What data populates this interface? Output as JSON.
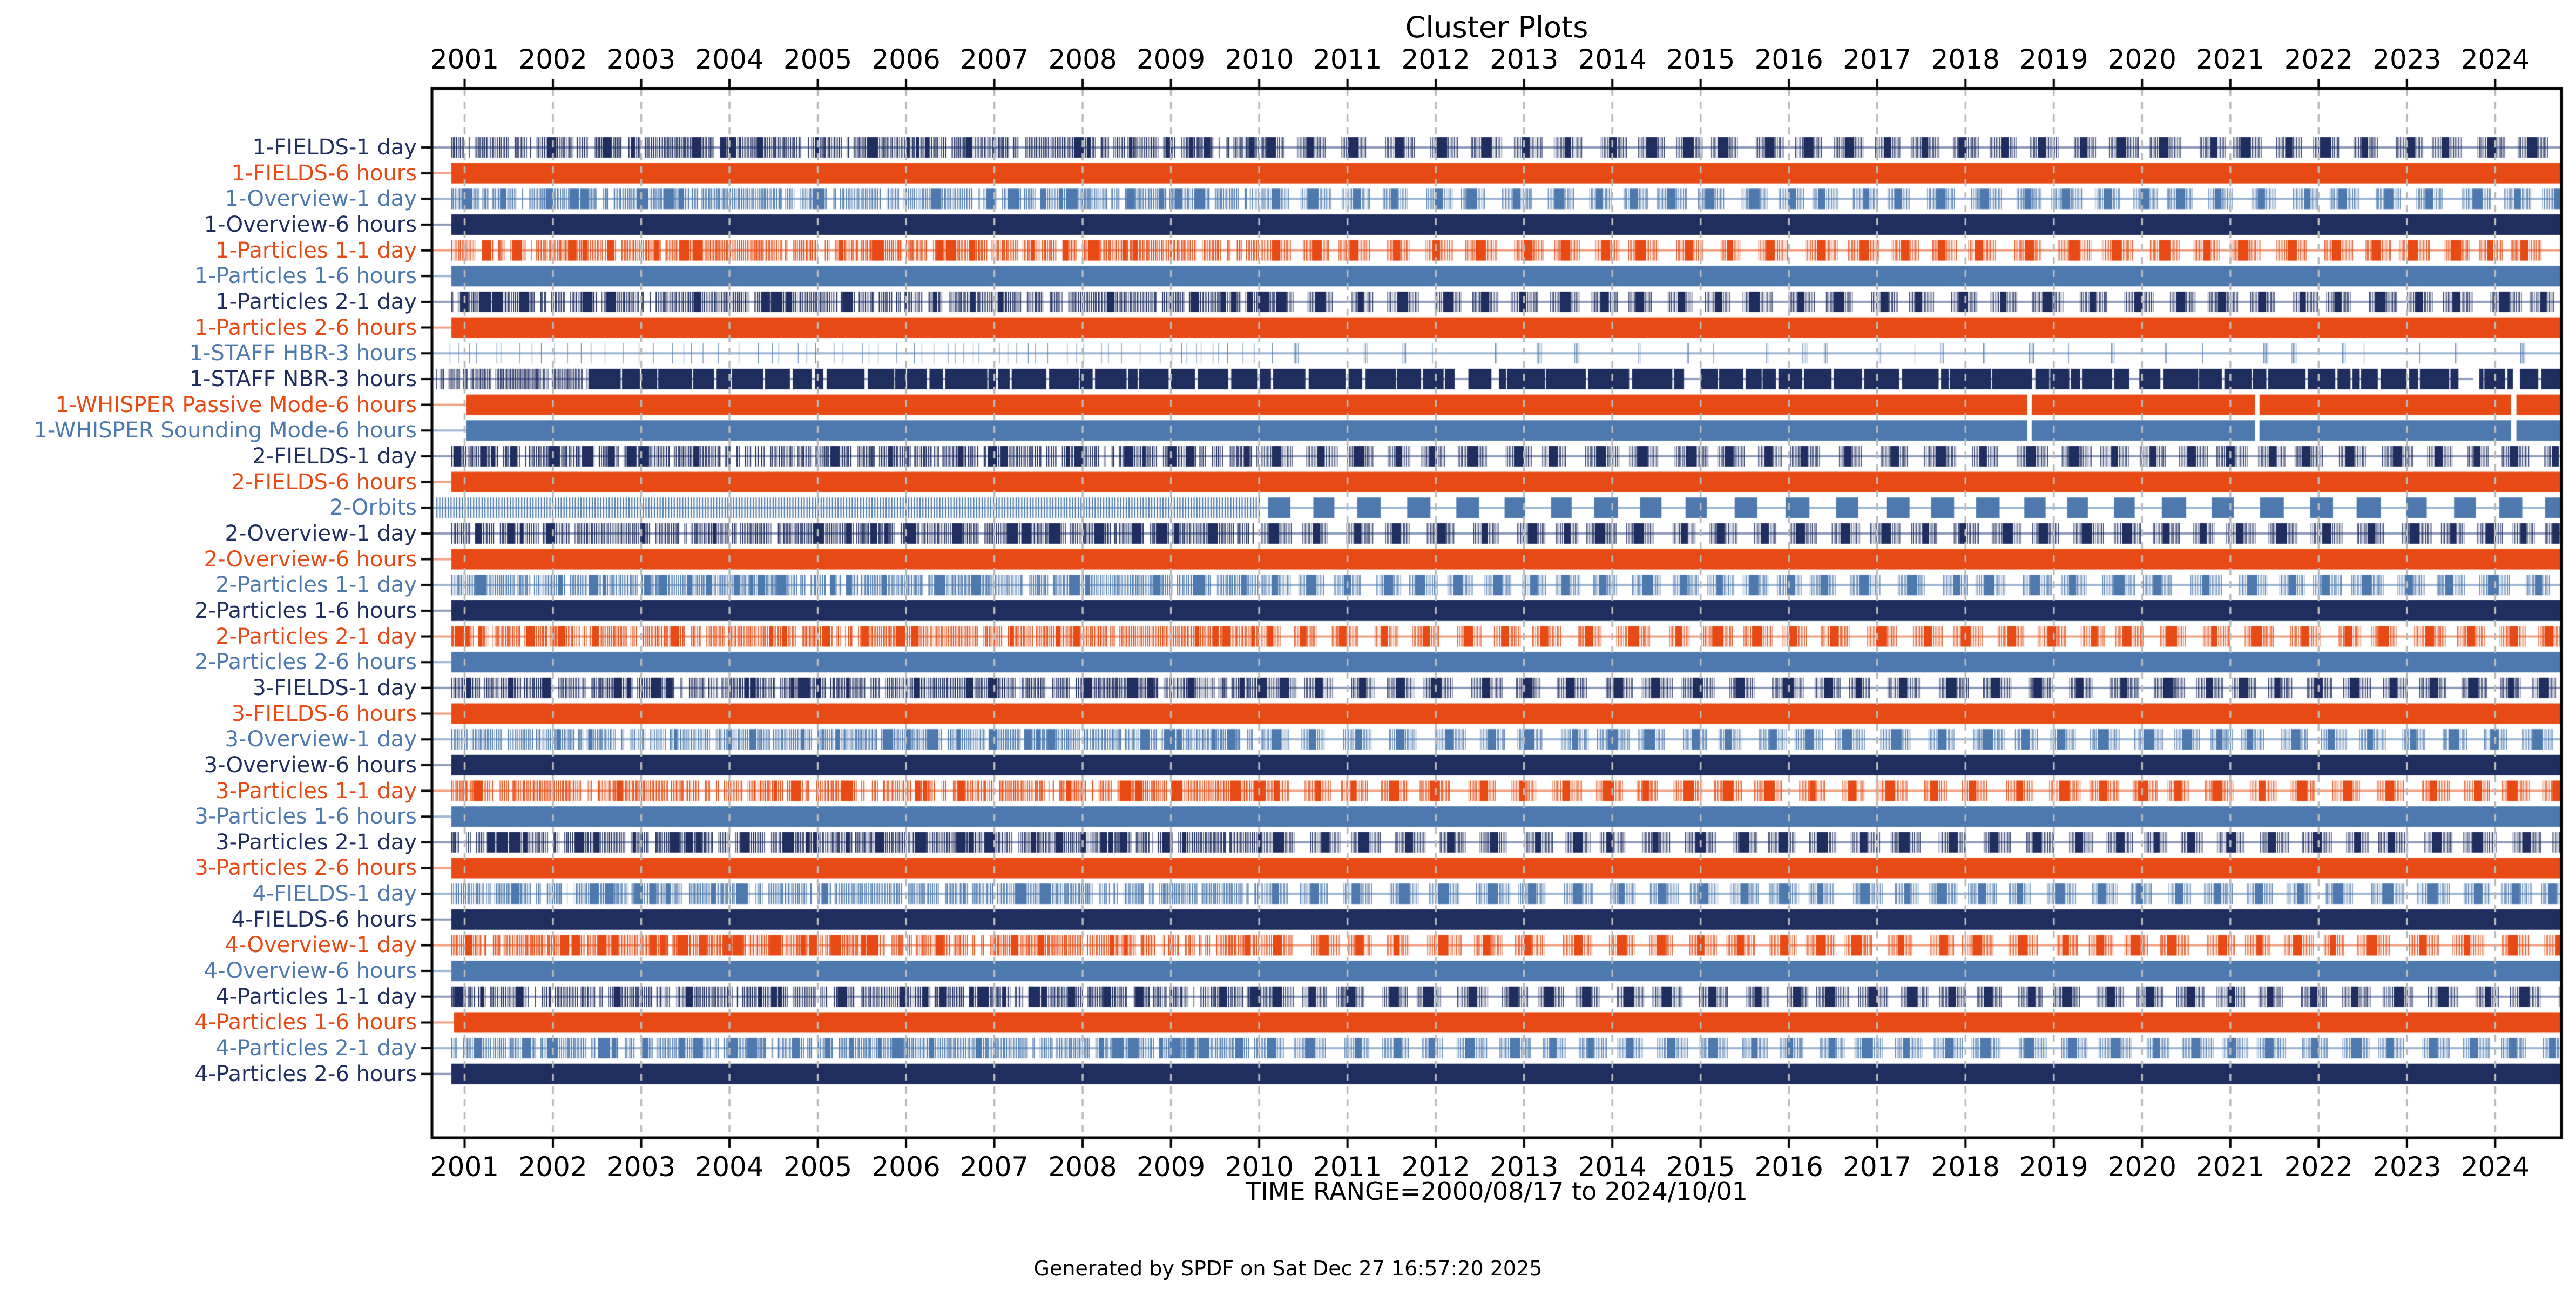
{
  "title": "Cluster Plots",
  "footer": "Generated by SPDF on Sat Dec 27 16:57:20 2025",
  "colors": {
    "navy": "#1f2e5f",
    "orange": "#e74a14",
    "blue": "#4d79ae",
    "navy_light": "#8e9bbd",
    "orange_light": "#f2a183",
    "blue_light": "#9cb6d6",
    "grid": "#b9b9b9",
    "axis": "#000000",
    "background": "#ffffff",
    "text": "#000000"
  },
  "chart_data": {
    "type": "bar",
    "subtype": "availability-timeline",
    "title": "Cluster Plots",
    "xlabel": "TIME RANGE=2000/08/17 to 2024/10/01",
    "ylabel": "",
    "xlim": [
      2000.63,
      2024.75
    ],
    "x_ticks": [
      2001,
      2002,
      2003,
      2004,
      2005,
      2006,
      2007,
      2008,
      2009,
      2010,
      2011,
      2012,
      2013,
      2014,
      2015,
      2016,
      2017,
      2018,
      2019,
      2020,
      2021,
      2022,
      2023,
      2024
    ],
    "grid": "vertical-dashed",
    "legend": "none",
    "time_range": {
      "start": "2000/08/17",
      "end": "2024/10/01"
    },
    "pattern_notes": {
      "dense-intervals": "1-day resolution product: dense barcode of short intervals until 2010, then ~2 clusters per year each with a solid core and fringe ticks",
      "solid": "continuous availability bar",
      "sparse-ticks": "isolated short intervals",
      "dense-then-blocks": "dense barcode until ~2002.4 then nearly continuous blocks with thin gaps",
      "regular-then-blocks": "regular fine ticks until 2010 then ~0.25-year blocks about twice per year"
    },
    "rows": [
      {
        "label": "1-FIELDS-1 day",
        "color": "navy",
        "pattern": "dense-intervals",
        "start": 2000.85,
        "end": 2024.75
      },
      {
        "label": "1-FIELDS-6 hours",
        "color": "orange",
        "pattern": "solid",
        "start": 2000.85,
        "end": 2024.75
      },
      {
        "label": "1-Overview-1 day",
        "color": "blue",
        "pattern": "dense-intervals",
        "start": 2000.85,
        "end": 2024.75
      },
      {
        "label": "1-Overview-6 hours",
        "color": "navy",
        "pattern": "solid",
        "start": 2000.85,
        "end": 2024.75
      },
      {
        "label": "1-Particles 1-1 day",
        "color": "orange",
        "pattern": "dense-intervals",
        "start": 2000.85,
        "end": 2024.75
      },
      {
        "label": "1-Particles 1-6 hours",
        "color": "blue",
        "pattern": "solid",
        "start": 2000.85,
        "end": 2024.75
      },
      {
        "label": "1-Particles 2-1 day",
        "color": "navy",
        "pattern": "dense-intervals",
        "start": 2000.85,
        "end": 2024.75
      },
      {
        "label": "1-Particles 2-6 hours",
        "color": "orange",
        "pattern": "solid",
        "start": 2000.85,
        "end": 2024.75
      },
      {
        "label": "1-STAFF HBR-3 hours",
        "color": "blue",
        "pattern": "sparse-ticks",
        "start": 2000.68,
        "end": 2024.75
      },
      {
        "label": "1-STAFF NBR-3 hours",
        "color": "navy",
        "pattern": "dense-then-blocks",
        "start": 2000.68,
        "end": 2024.75,
        "gaps": [
          [
            2023.75,
            2023.82
          ],
          [
            2024.2,
            2024.28
          ]
        ]
      },
      {
        "label": "1-WHISPER Passive Mode-6 hours",
        "color": "orange",
        "pattern": "solid",
        "start": 2001.02,
        "end": 2024.75,
        "gaps": [
          [
            2018.7,
            2018.75
          ],
          [
            2021.28,
            2021.33
          ],
          [
            2024.18,
            2024.24
          ]
        ]
      },
      {
        "label": "1-WHISPER Sounding Mode-6 hours",
        "color": "blue",
        "pattern": "solid",
        "start": 2001.02,
        "end": 2024.75,
        "gaps": [
          [
            2018.7,
            2018.75
          ],
          [
            2021.28,
            2021.33
          ],
          [
            2024.18,
            2024.24
          ]
        ]
      },
      {
        "label": "2-FIELDS-1 day",
        "color": "navy",
        "pattern": "dense-intervals",
        "start": 2000.85,
        "end": 2024.75
      },
      {
        "label": "2-FIELDS-6 hours",
        "color": "orange",
        "pattern": "solid",
        "start": 2000.85,
        "end": 2024.75
      },
      {
        "label": "2-Orbits",
        "color": "blue",
        "pattern": "regular-then-blocks",
        "start": 2000.68,
        "end": 2024.75
      },
      {
        "label": "2-Overview-1 day",
        "color": "navy",
        "pattern": "dense-intervals",
        "start": 2000.85,
        "end": 2024.75
      },
      {
        "label": "2-Overview-6 hours",
        "color": "orange",
        "pattern": "solid",
        "start": 2000.85,
        "end": 2024.75
      },
      {
        "label": "2-Particles 1-1 day",
        "color": "blue",
        "pattern": "dense-intervals",
        "start": 2000.85,
        "end": 2024.75
      },
      {
        "label": "2-Particles 1-6 hours",
        "color": "navy",
        "pattern": "solid",
        "start": 2000.85,
        "end": 2024.75
      },
      {
        "label": "2-Particles 2-1 day",
        "color": "orange",
        "pattern": "dense-intervals",
        "start": 2000.85,
        "end": 2024.75
      },
      {
        "label": "2-Particles 2-6 hours",
        "color": "blue",
        "pattern": "solid",
        "start": 2000.85,
        "end": 2024.75
      },
      {
        "label": "3-FIELDS-1 day",
        "color": "navy",
        "pattern": "dense-intervals",
        "start": 2000.85,
        "end": 2024.75
      },
      {
        "label": "3-FIELDS-6 hours",
        "color": "orange",
        "pattern": "solid",
        "start": 2000.85,
        "end": 2024.75
      },
      {
        "label": "3-Overview-1 day",
        "color": "blue",
        "pattern": "dense-intervals",
        "start": 2000.85,
        "end": 2024.75
      },
      {
        "label": "3-Overview-6 hours",
        "color": "navy",
        "pattern": "solid",
        "start": 2000.85,
        "end": 2024.75
      },
      {
        "label": "3-Particles 1-1 day",
        "color": "orange",
        "pattern": "dense-intervals",
        "start": 2000.85,
        "end": 2024.75
      },
      {
        "label": "3-Particles 1-6 hours",
        "color": "blue",
        "pattern": "solid",
        "start": 2000.85,
        "end": 2024.75
      },
      {
        "label": "3-Particles 2-1 day",
        "color": "navy",
        "pattern": "dense-intervals",
        "start": 2000.85,
        "end": 2024.75
      },
      {
        "label": "3-Particles 2-6 hours",
        "color": "orange",
        "pattern": "solid",
        "start": 2000.85,
        "end": 2024.75
      },
      {
        "label": "4-FIELDS-1 day",
        "color": "blue",
        "pattern": "dense-intervals",
        "start": 2000.85,
        "end": 2024.75
      },
      {
        "label": "4-FIELDS-6 hours",
        "color": "navy",
        "pattern": "solid",
        "start": 2000.85,
        "end": 2024.75
      },
      {
        "label": "4-Overview-1 day",
        "color": "orange",
        "pattern": "dense-intervals",
        "start": 2000.85,
        "end": 2024.75
      },
      {
        "label": "4-Overview-6 hours",
        "color": "blue",
        "pattern": "solid",
        "start": 2000.85,
        "end": 2024.75
      },
      {
        "label": "4-Particles 1-1 day",
        "color": "navy",
        "pattern": "dense-intervals",
        "start": 2000.85,
        "end": 2024.75
      },
      {
        "label": "4-Particles 1-6 hours",
        "color": "orange",
        "pattern": "solid",
        "start": 2000.88,
        "end": 2024.75
      },
      {
        "label": "4-Particles 2-1 day",
        "color": "blue",
        "pattern": "dense-intervals",
        "start": 2000.85,
        "end": 2024.75
      },
      {
        "label": "4-Particles 2-6 hours",
        "color": "navy",
        "pattern": "solid",
        "start": 2000.85,
        "end": 2024.75
      }
    ]
  }
}
